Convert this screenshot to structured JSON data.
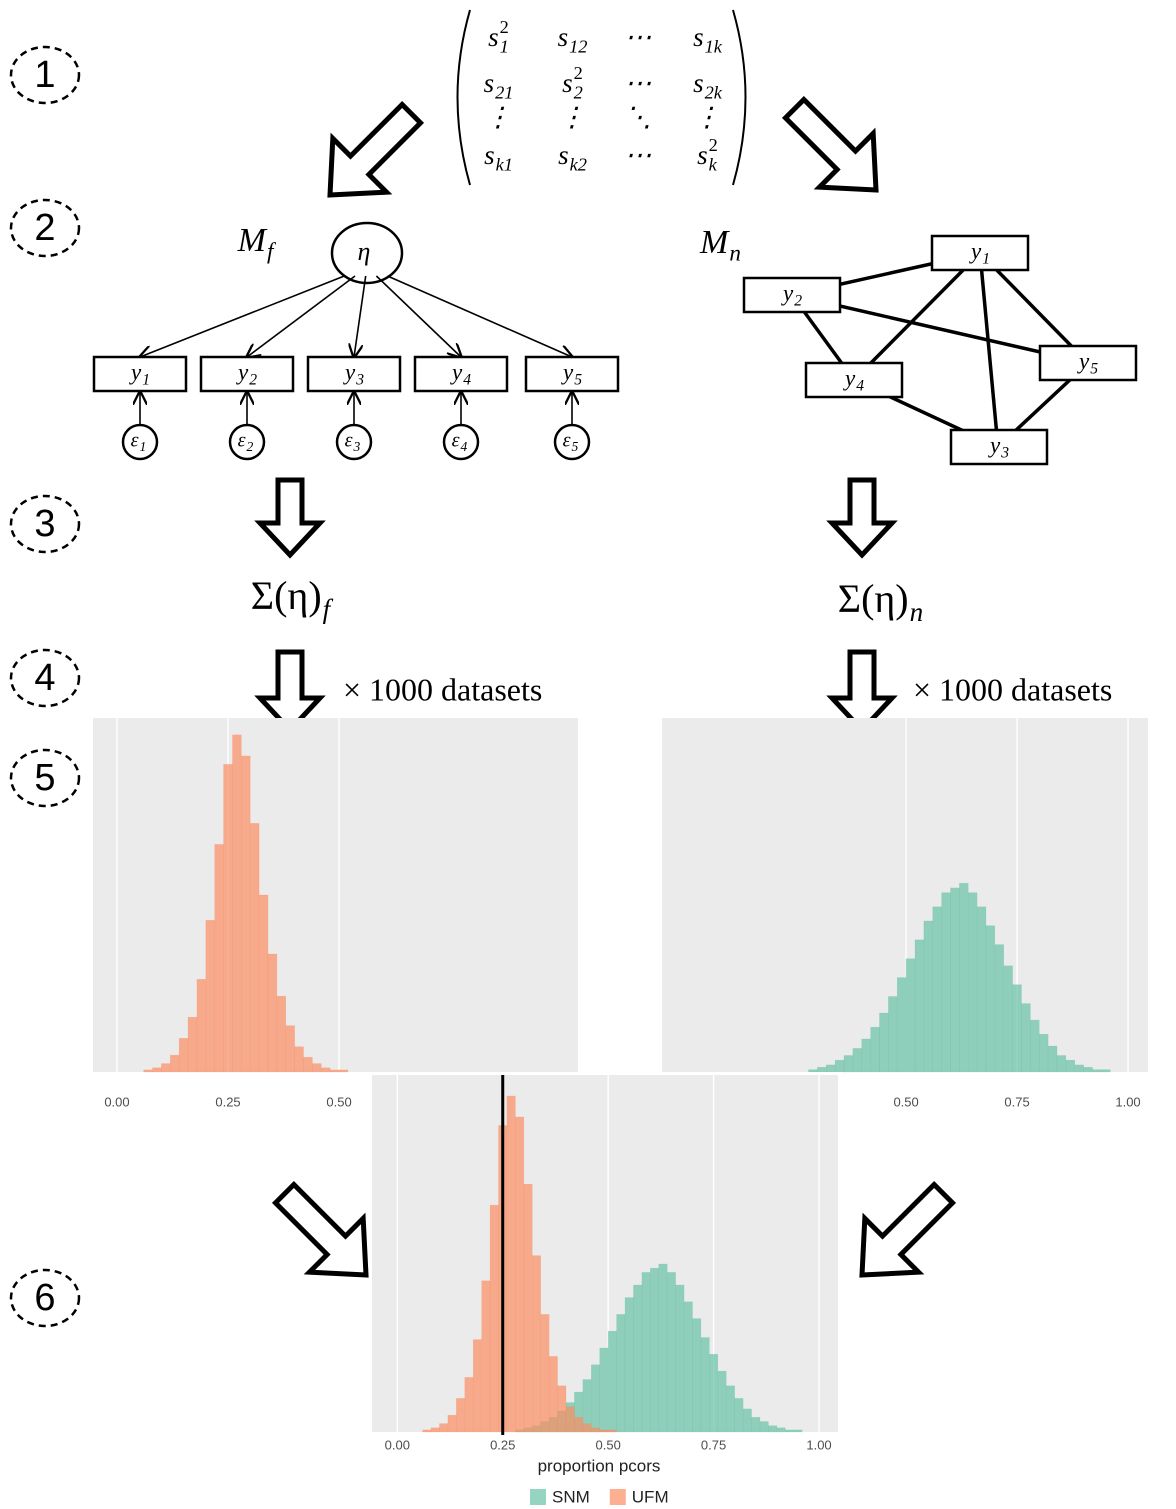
{
  "steps": [
    "1",
    "2",
    "3",
    "4",
    "5",
    "6"
  ],
  "matrix": [
    [
      {
        "base": "s",
        "sub": "1",
        "sup": "2"
      },
      {
        "base": "s",
        "sub": "12"
      },
      {
        "base": "⋯"
      },
      {
        "base": "s",
        "sub": "1k"
      }
    ],
    [
      {
        "base": "s",
        "sub": "21"
      },
      {
        "base": "s",
        "sub": "2",
        "sup": "2"
      },
      {
        "base": "⋯"
      },
      {
        "base": "s",
        "sub": "2k"
      }
    ],
    [
      {
        "base": "⋮"
      },
      {
        "base": "⋮"
      },
      {
        "base": "⋱"
      },
      {
        "base": "⋮"
      }
    ],
    [
      {
        "base": "s",
        "sub": "k1"
      },
      {
        "base": "s",
        "sub": "k2"
      },
      {
        "base": "⋯"
      },
      {
        "base": "s",
        "sub": "k",
        "sup": "2"
      }
    ]
  ],
  "factor_model": {
    "label": {
      "base": "M",
      "sub": "f"
    },
    "latent": "η",
    "indicators": [
      {
        "base": "y",
        "sub": "1"
      },
      {
        "base": "y",
        "sub": "2"
      },
      {
        "base": "y",
        "sub": "3"
      },
      {
        "base": "y",
        "sub": "4"
      },
      {
        "base": "y",
        "sub": "5"
      }
    ],
    "errors": [
      {
        "base": "ε",
        "sub": "1"
      },
      {
        "base": "ε",
        "sub": "2"
      },
      {
        "base": "ε",
        "sub": "3"
      },
      {
        "base": "ε",
        "sub": "4"
      },
      {
        "base": "ε",
        "sub": "5"
      }
    ]
  },
  "network_model": {
    "label": {
      "base": "M",
      "sub": "n"
    },
    "nodes": [
      {
        "base": "y",
        "sub": "1"
      },
      {
        "base": "y",
        "sub": "2"
      },
      {
        "base": "y",
        "sub": "3"
      },
      {
        "base": "y",
        "sub": "4"
      },
      {
        "base": "y",
        "sub": "5"
      }
    ]
  },
  "implied": [
    {
      "base": "Σ(η)",
      "sub": "f"
    },
    {
      "base": "Σ(η)",
      "sub": "n"
    }
  ],
  "replication": [
    "× 1000 datasets",
    "× 1000 datasets"
  ],
  "charts": [
    {
      "type": "histogram",
      "xlim": [
        -0.054,
        1.038
      ],
      "ylim": [
        0,
        168
      ],
      "xticks": [
        {
          "value": 0,
          "label": "0.00"
        },
        {
          "value": 0.25,
          "label": "0.25"
        },
        {
          "value": 0.5,
          "label": "0.50"
        }
      ],
      "series": [
        {
          "color": "#fc8d62",
          "bins": [
            0.06,
            0.08,
            0.1,
            0.12,
            0.14,
            0.16,
            0.18,
            0.2,
            0.22,
            0.24,
            0.26,
            0.28,
            0.3,
            0.32,
            0.34,
            0.36,
            0.38,
            0.4,
            0.42,
            0.44,
            0.46,
            0.48,
            0.5,
            0.52
          ],
          "values": [
            1,
            2,
            4,
            8,
            16,
            26,
            44,
            72,
            108,
            146,
            160,
            150,
            118,
            84,
            56,
            36,
            22,
            12,
            7,
            4,
            2,
            1,
            1
          ]
        }
      ]
    },
    {
      "type": "histogram",
      "xlim": [
        -0.05,
        1.045
      ],
      "ylim": [
        0,
        150
      ],
      "xticks": [
        {
          "value": 0.5,
          "label": "0.50"
        },
        {
          "value": 0.75,
          "label": "0.75"
        },
        {
          "value": 1,
          "label": "1.00"
        }
      ],
      "series": [
        {
          "color": "#66c2a5",
          "bins": [
            0.28,
            0.3,
            0.32,
            0.34,
            0.36,
            0.38,
            0.4,
            0.42,
            0.44,
            0.46,
            0.48,
            0.5,
            0.52,
            0.54,
            0.56,
            0.58,
            0.6,
            0.62,
            0.64,
            0.66,
            0.68,
            0.7,
            0.72,
            0.74,
            0.76,
            0.78,
            0.8,
            0.82,
            0.84,
            0.86,
            0.88,
            0.9,
            0.92,
            0.94,
            0.96
          ],
          "values": [
            1,
            2,
            3,
            5,
            7,
            10,
            14,
            19,
            25,
            32,
            40,
            48,
            56,
            64,
            70,
            76,
            78,
            80,
            76,
            70,
            62,
            54,
            45,
            37,
            29,
            22,
            16,
            11,
            7,
            5,
            3,
            2,
            1,
            1
          ]
        }
      ]
    },
    {
      "type": "histogram",
      "xlim": [
        -0.06,
        1.045
      ],
      "ylim": [
        0,
        170
      ],
      "xlabel": "proportion pcors",
      "vline": 0.25,
      "xticks": [
        {
          "value": 0,
          "label": "0.00"
        },
        {
          "value": 0.25,
          "label": "0.25"
        },
        {
          "value": 0.5,
          "label": "0.50"
        },
        {
          "value": 0.75,
          "label": "0.75"
        },
        {
          "value": 1,
          "label": "1.00"
        }
      ],
      "series": [
        {
          "name": "SNM",
          "color": "#66c2a5",
          "bins": [
            0.28,
            0.3,
            0.32,
            0.34,
            0.36,
            0.38,
            0.4,
            0.42,
            0.44,
            0.46,
            0.48,
            0.5,
            0.52,
            0.54,
            0.56,
            0.58,
            0.6,
            0.62,
            0.64,
            0.66,
            0.68,
            0.7,
            0.72,
            0.74,
            0.76,
            0.78,
            0.8,
            0.82,
            0.84,
            0.86,
            0.88,
            0.9,
            0.92,
            0.94,
            0.96
          ],
          "values": [
            1,
            2,
            3,
            5,
            7,
            10,
            14,
            19,
            25,
            32,
            40,
            48,
            56,
            64,
            70,
            76,
            78,
            80,
            76,
            70,
            62,
            54,
            45,
            37,
            29,
            22,
            16,
            11,
            7,
            5,
            3,
            2,
            1,
            1
          ]
        },
        {
          "name": "UFM",
          "color": "#fc8d62",
          "bins": [
            0.06,
            0.08,
            0.1,
            0.12,
            0.14,
            0.16,
            0.18,
            0.2,
            0.22,
            0.24,
            0.26,
            0.28,
            0.3,
            0.32,
            0.34,
            0.36,
            0.38,
            0.4,
            0.42,
            0.44,
            0.46,
            0.48,
            0.5,
            0.52
          ],
          "values": [
            1,
            2,
            4,
            8,
            16,
            26,
            44,
            72,
            108,
            146,
            160,
            150,
            118,
            84,
            56,
            36,
            22,
            12,
            7,
            4,
            2,
            1,
            1
          ]
        }
      ]
    }
  ]
}
